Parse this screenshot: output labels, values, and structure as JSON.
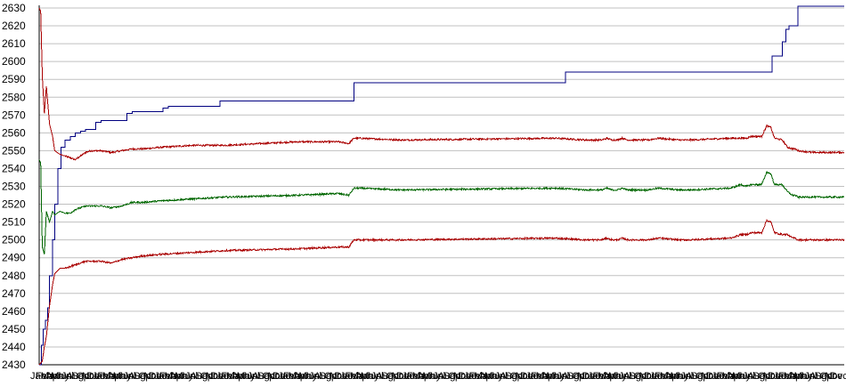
{
  "chart_data": {
    "type": "line",
    "title": "",
    "xlabel": "",
    "ylabel": "",
    "ylim": [
      2430,
      2630
    ],
    "yticks": [
      2430,
      2440,
      2450,
      2460,
      2470,
      2480,
      2490,
      2500,
      2510,
      2520,
      2530,
      2540,
      2550,
      2560,
      2570,
      2580,
      2590,
      2600,
      2610,
      2620,
      2630
    ],
    "grid": true,
    "legend": "none",
    "x_tick_labels": [
      "Jan",
      "Feb",
      "Mar",
      "Apr",
      "May",
      "Jun",
      "Jul",
      "Aug",
      "Sep",
      "Oct",
      "Nov",
      "Dec",
      "Jan",
      "Feb",
      "Mar",
      "Apr",
      "May",
      "Jun",
      "Jul",
      "Aug",
      "Sep",
      "Oct",
      "Nov",
      "Dec",
      "Jan",
      "Feb",
      "Mar",
      "Apr",
      "May",
      "Jun",
      "Jul",
      "Aug",
      "Sep",
      "Oct",
      "Nov",
      "Dec",
      "Jan",
      "Feb",
      "Mar",
      "Apr",
      "May",
      "Jun",
      "Jul",
      "Aug",
      "Sep",
      "Oct",
      "Nov",
      "Dec",
      "Jan",
      "Feb",
      "Mar",
      "Apr",
      "May",
      "Jun",
      "Jul",
      "Aug",
      "Sep",
      "Oct",
      "Nov",
      "Dec",
      "Jan",
      "Feb",
      "Mar",
      "Apr",
      "May",
      "Jun",
      "Jul",
      "Aug",
      "Sep",
      "Oct",
      "Nov",
      "Dec",
      "Jan",
      "Feb",
      "Mar",
      "Apr",
      "May",
      "Jun",
      "Jul",
      "Aug",
      "Sep",
      "Oct",
      "Nov",
      "Dec",
      "Jan",
      "Feb",
      "Mar",
      "Apr",
      "May",
      "Jun",
      "Jul",
      "Aug",
      "Sep",
      "Oct",
      "Nov",
      "Dec",
      "Jan",
      "Feb",
      "Mar",
      "Apr",
      "May",
      "Jun",
      "Jul",
      "Aug",
      "Sep",
      "Oct",
      "Nov",
      "Dec",
      "Jan",
      "Feb",
      "Mar",
      "Apr",
      "May",
      "Jun",
      "Jul",
      "Aug",
      "Sep",
      "Oct",
      "Nov",
      "Dec",
      "Jan",
      "Feb",
      "Mar",
      "Apr",
      "May",
      "Jun",
      "Jul",
      "Aug",
      "Sep",
      "Oct",
      "Nov",
      "Dec",
      "Jan",
      "Feb",
      "Mar",
      "Apr",
      "May",
      "Jun",
      "Jul",
      "Aug",
      "Sep",
      "Oct",
      "Nov",
      "Dec",
      "Jan",
      "Feb",
      "Mar",
      "Apr",
      "May",
      "Jun",
      "Jul",
      "Aug",
      "Sep",
      "Oct",
      "Nov",
      "Dec"
    ],
    "series": [
      {
        "color": "#000080",
        "style": "step",
        "x": [
          0,
          0.4,
          0.8,
          1.2,
          1.6,
          2,
          2.6,
          3,
          3.6,
          4.2,
          5,
          6,
          7,
          8,
          9,
          11,
          12,
          17,
          18,
          24,
          25,
          34,
          35,
          60,
          61,
          101,
          102,
          141,
          142,
          144,
          144.7,
          145.3,
          146,
          147,
          156
        ],
        "values": [
          2430,
          2441,
          2450,
          2455,
          2462,
          2480,
          2500,
          2520,
          2540,
          2552,
          2556,
          2558,
          2560,
          2561,
          2562,
          2566,
          2567,
          2571,
          2572,
          2574,
          2575,
          2575,
          2578,
          2578,
          2588,
          2588,
          2594,
          2594,
          2603,
          2611,
          2618,
          2620,
          2620,
          2631,
          2631
        ]
      },
      {
        "color": "#aa0000",
        "style": "noisy",
        "x": [
          0,
          0.3,
          0.6,
          1,
          1.4,
          2,
          2.6,
          3,
          4,
          5,
          6,
          7,
          8,
          9,
          10,
          12,
          14,
          16,
          18,
          20,
          24,
          30,
          36,
          50,
          58,
          60,
          61,
          62,
          70,
          100,
          106,
          109,
          110,
          111,
          112,
          113,
          114,
          118,
          120,
          124,
          126,
          134,
          136,
          137,
          138,
          139,
          140,
          141,
          141.8,
          142.5,
          144,
          145,
          146,
          146.5,
          147,
          150,
          152,
          156
        ],
        "values": [
          2630,
          2628,
          2592,
          2571,
          2586,
          2565,
          2558,
          2550,
          2548,
          2547,
          2546,
          2545,
          2547,
          2549,
          2550,
          2550,
          2549,
          2550,
          2551,
          2551,
          2552,
          2553,
          2553,
          2555,
          2555,
          2554,
          2557,
          2557,
          2556,
          2557,
          2556,
          2556,
          2557,
          2556,
          2556,
          2557,
          2556,
          2556,
          2557,
          2556,
          2556,
          2557,
          2557,
          2557,
          2558,
          2558,
          2558,
          2564,
          2563,
          2557,
          2556,
          2552,
          2551,
          2551,
          2550,
          2549,
          2549,
          2549
        ]
      },
      {
        "color": "#006600",
        "style": "noisy",
        "x": [
          0,
          0.3,
          0.6,
          1,
          1.4,
          2,
          2.6,
          3,
          4,
          5,
          6,
          7,
          8,
          9,
          10,
          12,
          14,
          16,
          18,
          20,
          24,
          30,
          36,
          50,
          58,
          60,
          61,
          62,
          70,
          100,
          106,
          109,
          110,
          111,
          112,
          113,
          114,
          118,
          120,
          124,
          126,
          134,
          136,
          137,
          138,
          139,
          140,
          141,
          141.8,
          142.5,
          144,
          145,
          146,
          146.5,
          147,
          150,
          152,
          156
        ],
        "values": [
          2545,
          2543,
          2496,
          2492,
          2516,
          2510,
          2516,
          2514,
          2516,
          2515,
          2515,
          2517,
          2518,
          2519,
          2519,
          2519,
          2518,
          2519,
          2521,
          2521,
          2522,
          2523,
          2524,
          2525,
          2526,
          2525,
          2529,
          2529,
          2528,
          2529,
          2528,
          2528,
          2529,
          2528,
          2528,
          2529,
          2528,
          2528,
          2529,
          2528,
          2528,
          2529,
          2531,
          2530,
          2531,
          2531,
          2531,
          2538,
          2537,
          2531,
          2531,
          2527,
          2525,
          2525,
          2524,
          2524,
          2524,
          2524
        ]
      },
      {
        "color": "#aa0000",
        "style": "noisy",
        "x": [
          0,
          0.3,
          0.6,
          1,
          1.4,
          2,
          2.6,
          3,
          4,
          5,
          6,
          7,
          8,
          9,
          10,
          12,
          14,
          16,
          18,
          20,
          24,
          30,
          36,
          50,
          58,
          60,
          61,
          62,
          70,
          100,
          106,
          109,
          110,
          111,
          112,
          113,
          114,
          118,
          120,
          124,
          126,
          134,
          136,
          137,
          138,
          139,
          140,
          141,
          141.8,
          142.5,
          144,
          145,
          146,
          146.5,
          147,
          150,
          152,
          156
        ],
        "values": [
          2430,
          2431,
          2432,
          2440,
          2446,
          2463,
          2475,
          2481,
          2484,
          2484,
          2485,
          2486,
          2487,
          2488,
          2488,
          2488,
          2487,
          2489,
          2490,
          2491,
          2492,
          2493,
          2494,
          2495,
          2496,
          2496,
          2500,
          2500,
          2500,
          2501,
          2500,
          2500,
          2501,
          2500,
          2500,
          2501,
          2500,
          2500,
          2501,
          2500,
          2500,
          2501,
          2503,
          2503,
          2504,
          2504,
          2504,
          2511,
          2510,
          2504,
          2503,
          2503,
          2501,
          2501,
          2500,
          2500,
          2500,
          2500
        ]
      }
    ]
  }
}
